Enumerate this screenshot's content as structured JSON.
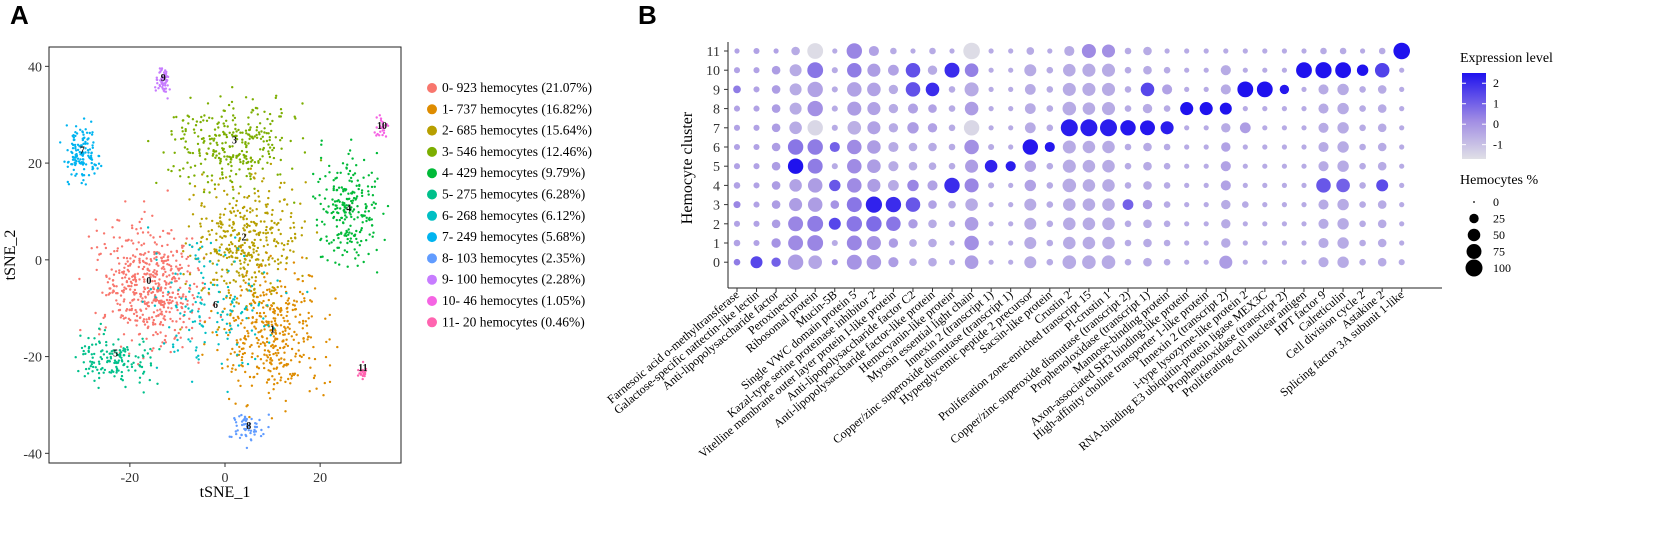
{
  "panels": {
    "A": {
      "letter": "A"
    },
    "B": {
      "letter": "B"
    }
  },
  "chart_data": [
    {
      "type": "scatter",
      "title": "",
      "xlabel": "tSNE_1",
      "ylabel": "tSNE_2",
      "xlim": [
        -37,
        37
      ],
      "ylim": [
        -42,
        44
      ],
      "xticks": [
        -20,
        0,
        20
      ],
      "xtick_labels": [
        "-20",
        "0",
        "20"
      ],
      "yticks": [
        -40,
        -20,
        0,
        20,
        40
      ],
      "ytick_labels": [
        "-40",
        "-20",
        "0",
        "20",
        "40"
      ],
      "grid": false,
      "legend_position": "right",
      "clusters": [
        {
          "id": "0",
          "label": "0- 923 hemocytes (21.07%)",
          "count": 923,
          "color": "#F8766D",
          "center": [
            -16,
            -5
          ],
          "spread": [
            8,
            9
          ]
        },
        {
          "id": "1",
          "label": "1- 737 hemocytes (16.82%)",
          "count": 737,
          "color": "#DE8C00",
          "center": [
            10,
            -15
          ],
          "spread": [
            8,
            9
          ]
        },
        {
          "id": "2",
          "label": "2- 685 hemocytes (15.64%)",
          "count": 685,
          "color": "#B79F00",
          "center": [
            4,
            4
          ],
          "spread": [
            8,
            9
          ]
        },
        {
          "id": "3",
          "label": "3- 546 hemocytes (12.46%)",
          "count": 546,
          "color": "#7CAE00",
          "center": [
            2,
            24
          ],
          "spread": [
            9,
            6
          ]
        },
        {
          "id": "4",
          "label": "4- 429 hemocytes (9.79%)",
          "count": 429,
          "color": "#00BA38",
          "center": [
            26,
            10
          ],
          "spread": [
            5,
            8
          ]
        },
        {
          "id": "5",
          "label": "5- 275 hemocytes (6.28%)",
          "count": 275,
          "color": "#00C08B",
          "center": [
            -23,
            -20
          ],
          "spread": [
            6,
            4
          ]
        },
        {
          "id": "6",
          "label": "6- 268 hemocytes (6.12%)",
          "count": 268,
          "color": "#00BFC4",
          "center": [
            -2,
            -10
          ],
          "spread": [
            10,
            10
          ]
        },
        {
          "id": "7",
          "label": "7- 249 hemocytes (5.68%)",
          "count": 249,
          "color": "#00B4F0",
          "center": [
            -30,
            22
          ],
          "spread": [
            2.5,
            4
          ]
        },
        {
          "id": "8",
          "label": "8- 103 hemocytes (2.35%)",
          "count": 103,
          "color": "#619CFF",
          "center": [
            5,
            -35
          ],
          "spread": [
            3,
            2
          ]
        },
        {
          "id": "9",
          "label": "9- 100 hemocytes (2.28%)",
          "count": 100,
          "color": "#C77CFF",
          "center": [
            -13,
            37
          ],
          "spread": [
            1,
            2
          ]
        },
        {
          "id": "10",
          "label": "10- 46 hemocytes (1.05%)",
          "count": 46,
          "color": "#F564E3",
          "center": [
            33,
            27
          ],
          "spread": [
            1,
            1.5
          ]
        },
        {
          "id": "11",
          "label": "11- 20  hemocytes (0.46%)",
          "count": 20,
          "color": "#FF64B0",
          "center": [
            29,
            -23
          ],
          "spread": [
            0.6,
            1
          ]
        }
      ]
    },
    {
      "type": "dotplot",
      "title": "",
      "xlabel": "",
      "ylabel": "Hemocyte cluster",
      "clusters": [
        "0",
        "1",
        "2",
        "3",
        "4",
        "5",
        "6",
        "7",
        "8",
        "9",
        "10",
        "11"
      ],
      "genes": [
        "Farnesoic acid o-methyltransferase",
        "Galactose-specific nattectin-like lectin",
        "Anti-lipopolysaccharide factor",
        "Peroxinectin",
        "Ribosomal protein",
        "Mucin-5B",
        "Single VWC domain protein 5",
        "Kazal-type serine proteinase inhibitor 2",
        "Vitelline membrane outer layer protein I-like protein",
        "Anti-lipopolysaccharide factor C2",
        "Anti-lipopolysaccharide factor-like protein",
        "Hemocyanin-like protein",
        "Myosin essential light chain",
        "Innexin 2 (transcript 1)",
        "Copper/zinc superoxide dismutase (transcript 1)",
        "Hyperglycemic peptide 2 precursor",
        "Sacsin-like protein",
        "Crustin 2",
        "Proliferation zone-enriched transcript 15",
        "Pl-crustin 1",
        "Copper/zinc superoxide dismutase (transcript 2)",
        "Prophenoloxidase (transcript 1)",
        "Mannose-binding protein",
        "Axon-associated SH3 binding-like protein",
        "High-affinity choline transporter 1-like protein",
        "Innexin 2 (transcript 2)",
        "i-type lysozyme-like protein 2",
        "RNA-binding E3 ubiquitin-protein ligase MEX3C",
        "Prophenoloxidase (transcript 2)",
        "Proliferating cell nuclear antigen",
        "HPT factor 9",
        "Calreticulin",
        "Cell division cycle 2",
        "Astakine 2",
        "Splicing factor 3A subunit 1-like"
      ],
      "pct": [
        [
          10,
          45,
          25,
          80,
          60,
          8,
          75,
          70,
          30,
          15,
          20,
          8,
          60,
          5,
          5,
          45,
          10,
          60,
          60,
          60,
          10,
          20,
          10,
          5,
          5,
          55,
          5,
          5,
          5,
          5,
          30,
          40,
          10,
          20,
          8
        ],
        [
          10,
          8,
          25,
          75,
          85,
          8,
          75,
          65,
          25,
          15,
          20,
          5,
          70,
          5,
          5,
          45,
          10,
          50,
          50,
          50,
          10,
          20,
          10,
          5,
          5,
          25,
          5,
          5,
          5,
          5,
          30,
          40,
          10,
          20,
          5
        ],
        [
          8,
          8,
          20,
          75,
          85,
          45,
          80,
          80,
          70,
          25,
          20,
          10,
          60,
          5,
          5,
          45,
          10,
          50,
          50,
          50,
          10,
          20,
          10,
          5,
          5,
          25,
          5,
          5,
          5,
          5,
          30,
          40,
          10,
          20,
          5
        ],
        [
          12,
          8,
          20,
          55,
          70,
          20,
          75,
          90,
          80,
          70,
          20,
          15,
          50,
          5,
          5,
          45,
          10,
          50,
          50,
          50,
          35,
          25,
          10,
          5,
          5,
          25,
          10,
          5,
          5,
          5,
          30,
          40,
          10,
          20,
          5
        ],
        [
          10,
          8,
          20,
          50,
          70,
          40,
          70,
          55,
          35,
          40,
          30,
          80,
          65,
          8,
          5,
          40,
          10,
          60,
          50,
          50,
          10,
          20,
          10,
          5,
          5,
          30,
          5,
          5,
          5,
          5,
          70,
          60,
          10,
          45,
          5
        ],
        [
          8,
          8,
          20,
          80,
          75,
          8,
          70,
          60,
          30,
          20,
          15,
          10,
          55,
          50,
          30,
          40,
          10,
          55,
          50,
          50,
          10,
          20,
          10,
          5,
          5,
          30,
          5,
          5,
          5,
          5,
          30,
          40,
          10,
          20,
          5
        ],
        [
          8,
          8,
          20,
          80,
          80,
          30,
          70,
          60,
          30,
          20,
          20,
          10,
          70,
          8,
          5,
          80,
          30,
          55,
          50,
          50,
          10,
          20,
          10,
          5,
          5,
          25,
          5,
          5,
          5,
          5,
          30,
          40,
          10,
          20,
          5
        ],
        [
          8,
          8,
          20,
          50,
          80,
          8,
          60,
          55,
          25,
          40,
          25,
          10,
          80,
          5,
          5,
          35,
          10,
          100,
          100,
          100,
          80,
          75,
          55,
          5,
          5,
          25,
          35,
          5,
          5,
          5,
          30,
          40,
          10,
          20,
          5
        ],
        [
          8,
          8,
          20,
          45,
          80,
          8,
          65,
          55,
          25,
          30,
          20,
          10,
          60,
          5,
          5,
          35,
          10,
          60,
          50,
          55,
          10,
          25,
          10,
          55,
          55,
          45,
          5,
          5,
          5,
          5,
          30,
          40,
          10,
          20,
          5
        ],
        [
          15,
          8,
          20,
          45,
          80,
          8,
          70,
          60,
          25,
          70,
          60,
          10,
          65,
          5,
          5,
          35,
          10,
          55,
          55,
          55,
          10,
          60,
          30,
          5,
          5,
          30,
          85,
          85,
          25,
          5,
          30,
          40,
          10,
          20,
          5
        ],
        [
          8,
          8,
          20,
          45,
          85,
          8,
          70,
          55,
          35,
          70,
          25,
          75,
          60,
          5,
          5,
          45,
          10,
          50,
          55,
          55,
          10,
          20,
          10,
          5,
          5,
          30,
          5,
          5,
          5,
          85,
          90,
          85,
          40,
          70,
          5
        ],
        [
          5,
          8,
          5,
          20,
          85,
          5,
          80,
          30,
          10,
          5,
          10,
          5,
          95,
          5,
          5,
          15,
          5,
          30,
          65,
          55,
          10,
          20,
          5,
          5,
          5,
          5,
          5,
          5,
          5,
          5,
          10,
          10,
          5,
          10,
          95
        ]
      ],
      "expr": [
        [
          0.5,
          1.5,
          1.0,
          -0.2,
          -0.4,
          0,
          0,
          -0.1,
          -0.2,
          -0.5,
          -0.5,
          -0.5,
          -0.2,
          -0.5,
          -0.5,
          -0.5,
          -0.5,
          -0.5,
          -0.5,
          -0.5,
          -0.5,
          -0.5,
          -0.5,
          -0.5,
          -0.5,
          -0.2,
          -0.5,
          -0.5,
          -0.5,
          -0.5,
          -0.5,
          -0.5,
          -0.5,
          -0.5,
          -0.5
        ],
        [
          -0.3,
          -0.3,
          0,
          0.2,
          0.3,
          -0.5,
          0.3,
          0,
          -0.2,
          -0.5,
          -0.5,
          -0.5,
          0.1,
          -0.5,
          -0.5,
          -0.5,
          -0.5,
          -0.5,
          -0.5,
          -0.5,
          -0.5,
          -0.5,
          -0.5,
          -0.5,
          -0.5,
          -0.5,
          -0.5,
          -0.5,
          -0.5,
          -0.5,
          -0.5,
          -0.5,
          -0.5,
          -0.5,
          -0.5
        ],
        [
          -0.3,
          -0.3,
          -0.2,
          0.3,
          0.5,
          1.5,
          0.6,
          0.8,
          0.6,
          -0.2,
          -0.5,
          -0.5,
          -0.2,
          -0.5,
          -0.5,
          -0.5,
          -0.5,
          -0.5,
          -0.5,
          -0.5,
          -0.5,
          -0.5,
          -0.5,
          -0.5,
          -0.5,
          -0.5,
          -0.5,
          -0.5,
          -0.5,
          -0.5,
          -0.5,
          -0.5,
          -0.5,
          -0.5,
          -0.5
        ],
        [
          0.3,
          -0.3,
          -0.2,
          -0.2,
          -0.2,
          0,
          0.6,
          2.2,
          2.0,
          1.2,
          -0.3,
          -0.5,
          -0.5,
          -0.5,
          -0.5,
          -0.5,
          -0.5,
          -0.5,
          -0.5,
          -0.5,
          1.0,
          -0.2,
          -0.5,
          -0.5,
          -0.5,
          -0.5,
          -0.5,
          -0.5,
          -0.5,
          -0.5,
          -0.5,
          -0.5,
          -0.5,
          -0.5,
          -0.5
        ],
        [
          -0.3,
          -0.3,
          -0.2,
          -0.3,
          -0.2,
          1.2,
          0.2,
          -0.2,
          -0.5,
          0.3,
          -0.3,
          2.0,
          0.3,
          -0.5,
          -0.5,
          -0.3,
          -0.5,
          -0.5,
          -0.5,
          -0.5,
          -0.5,
          -0.5,
          -0.5,
          -0.5,
          -0.5,
          -0.3,
          -0.5,
          -0.5,
          -0.5,
          -0.5,
          1.2,
          1.0,
          -0.5,
          1.4,
          -0.5
        ],
        [
          -0.3,
          -0.3,
          -0.2,
          2.5,
          0.5,
          -0.5,
          0.2,
          -0.2,
          -0.5,
          -0.5,
          -0.5,
          -0.5,
          -0.2,
          2.2,
          2.3,
          -0.3,
          -0.5,
          -0.5,
          -0.5,
          -0.5,
          -0.5,
          -0.5,
          -0.5,
          -0.5,
          -0.5,
          -0.3,
          -0.5,
          -0.5,
          -0.5,
          -0.5,
          -0.5,
          -0.5,
          -0.5,
          -0.5,
          -0.5
        ],
        [
          -0.3,
          -0.3,
          -0.2,
          0.6,
          0.5,
          1.0,
          0.2,
          -0.2,
          -0.5,
          -0.5,
          -0.5,
          -0.5,
          0.1,
          -0.5,
          -0.5,
          2.4,
          2.4,
          -0.5,
          -0.5,
          -0.5,
          -0.5,
          -0.5,
          -0.5,
          -0.5,
          -0.5,
          -0.3,
          -0.5,
          -0.5,
          -0.5,
          -0.5,
          -0.5,
          -0.5,
          -0.5,
          -0.5,
          -0.5
        ],
        [
          -0.3,
          -0.3,
          -0.2,
          -0.5,
          -1.5,
          -0.5,
          -0.6,
          -0.3,
          -0.5,
          -0.2,
          -0.3,
          -0.5,
          -1.5,
          -0.5,
          -0.5,
          -0.5,
          -0.5,
          2.3,
          2.3,
          2.3,
          2.4,
          2.4,
          2.3,
          -0.5,
          -0.5,
          -0.5,
          -0.2,
          -0.5,
          -0.5,
          -0.5,
          -0.5,
          -0.5,
          -0.5,
          -0.5,
          -0.5
        ],
        [
          -0.3,
          -0.3,
          -0.2,
          -0.5,
          0.1,
          -0.5,
          -0.2,
          -0.3,
          -0.5,
          -0.3,
          -0.3,
          -0.5,
          -0.2,
          -0.5,
          -0.5,
          -0.5,
          -0.5,
          -0.5,
          -0.5,
          -0.5,
          -0.5,
          -0.5,
          -0.5,
          2.5,
          2.5,
          2.5,
          -0.5,
          -0.5,
          -0.5,
          -0.5,
          -0.5,
          -0.5,
          -0.5,
          -0.5,
          -0.5
        ],
        [
          0.5,
          -0.3,
          -0.2,
          -0.5,
          -0.3,
          -0.5,
          -0.3,
          -0.3,
          -0.5,
          1.3,
          2.0,
          -0.5,
          -0.5,
          -0.5,
          -0.5,
          -0.5,
          -0.5,
          -0.5,
          -0.5,
          -0.5,
          -0.5,
          1.5,
          -0.3,
          -0.5,
          -0.5,
          -0.5,
          2.6,
          2.6,
          2.4,
          -0.5,
          -0.5,
          -0.5,
          -0.5,
          -0.5,
          -0.5
        ],
        [
          -0.3,
          -0.3,
          -0.2,
          -0.5,
          0.6,
          -0.5,
          0.5,
          -0.2,
          -0.3,
          1.3,
          -0.5,
          2.0,
          0.4,
          -0.5,
          -0.5,
          -0.5,
          -0.5,
          -0.5,
          -0.5,
          -0.5,
          -0.5,
          -0.5,
          -0.5,
          -0.5,
          -0.5,
          -0.5,
          -0.5,
          -0.5,
          -0.5,
          2.6,
          2.6,
          2.6,
          2.5,
          1.6,
          -0.5
        ],
        [
          -0.3,
          -0.3,
          -0.3,
          -0.5,
          -1.6,
          -0.5,
          0.3,
          -0.3,
          -0.5,
          -0.5,
          -0.5,
          -0.5,
          -1.6,
          -0.5,
          -0.5,
          -0.5,
          -0.5,
          -0.5,
          0.2,
          0.1,
          -0.5,
          -0.5,
          -0.5,
          -0.5,
          -0.5,
          -0.5,
          -0.5,
          -0.5,
          -0.5,
          -0.5,
          -0.5,
          -0.5,
          -0.5,
          -0.5,
          2.8
        ]
      ],
      "colorbar": {
        "title": "Expression level",
        "range": [
          -1.7,
          2.5
        ],
        "ticks": [
          2,
          1,
          0,
          -1
        ],
        "tick_labels": [
          "2",
          "1",
          "0",
          "-1"
        ],
        "low_color": "#E0E0E6",
        "high_color": "#1F12EE"
      },
      "size_legend": {
        "title": "Hemocytes %",
        "values": [
          0,
          25,
          50,
          75,
          100
        ],
        "labels": [
          "0",
          "25",
          "50",
          "75",
          "100"
        ]
      }
    }
  ]
}
